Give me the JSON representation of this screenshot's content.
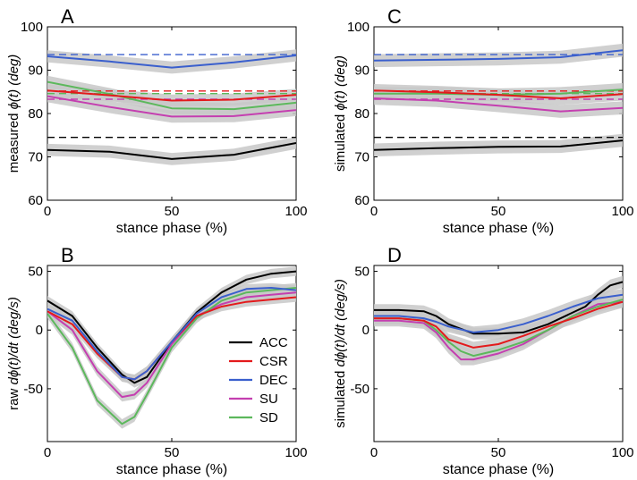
{
  "colors": {
    "ACC": "#000000",
    "CSR": "#e31a1c",
    "DEC": "#3a5fcd",
    "SU": "#c43fb0",
    "SD": "#5cb85c",
    "band": "#c8c8c8"
  },
  "legend": [
    "ACC",
    "CSR",
    "DEC",
    "SU",
    "SD"
  ],
  "chart_data": [
    {
      "panel": "A",
      "type": "line",
      "xlabel": "stance phase (%)",
      "ylabel_prefix": "measured ",
      "ylabel_sym": "ϕ(t)",
      "ylabel_unit": " (deg)",
      "xlim": [
        0,
        100
      ],
      "ylim": [
        60,
        100
      ],
      "xticks": [
        0,
        50,
        100
      ],
      "yticks": [
        60,
        70,
        80,
        90,
        100
      ],
      "band_width": 1.4,
      "series": [
        {
          "name": "DEC",
          "x": [
            0,
            25,
            50,
            75,
            100
          ],
          "y": [
            93.2,
            92.0,
            90.6,
            91.8,
            93.4
          ],
          "ref": 93.6
        },
        {
          "name": "CSR",
          "x": [
            0,
            25,
            50,
            75,
            100
          ],
          "y": [
            85.3,
            84.2,
            83.0,
            83.2,
            84.3
          ],
          "ref": 85.2
        },
        {
          "name": "SD",
          "x": [
            0,
            25,
            50,
            75,
            100
          ],
          "y": [
            87.3,
            84.5,
            81.2,
            81.0,
            82.5
          ],
          "ref": 84.6
        },
        {
          "name": "SU",
          "x": [
            0,
            25,
            50,
            75,
            100
          ],
          "y": [
            84.0,
            81.5,
            79.3,
            79.4,
            80.8
          ],
          "ref": 83.3
        },
        {
          "name": "ACC",
          "x": [
            0,
            25,
            50,
            75,
            100
          ],
          "y": [
            71.6,
            71.2,
            69.5,
            70.5,
            73.2
          ],
          "ref": 74.5
        }
      ]
    },
    {
      "panel": "B",
      "type": "line",
      "xlabel": "stance phase (%)",
      "ylabel_prefix": "raw ",
      "ylabel_sym": "dϕ(t)/dt",
      "ylabel_unit": " (deg/s)",
      "xlim": [
        0,
        100
      ],
      "ylim": [
        -95,
        55
      ],
      "xticks": [
        0,
        50,
        100
      ],
      "yticks": [
        -50,
        0,
        50
      ],
      "band_width": 4,
      "series": [
        {
          "name": "ACC",
          "x": [
            0,
            10,
            20,
            30,
            35,
            40,
            50,
            60,
            70,
            80,
            90,
            100
          ],
          "y": [
            25,
            12,
            -15,
            -38,
            -45,
            -40,
            -10,
            15,
            32,
            43,
            48,
            50
          ]
        },
        {
          "name": "CSR",
          "x": [
            0,
            10,
            20,
            30,
            35,
            40,
            50,
            60,
            70,
            80,
            90,
            100
          ],
          "y": [
            16,
            5,
            -20,
            -40,
            -42,
            -35,
            -10,
            12,
            20,
            24,
            26,
            28
          ]
        },
        {
          "name": "DEC",
          "x": [
            0,
            10,
            20,
            30,
            35,
            40,
            50,
            60,
            70,
            80,
            90,
            100
          ],
          "y": [
            18,
            8,
            -18,
            -40,
            -42,
            -35,
            -10,
            14,
            28,
            35,
            36,
            34
          ]
        },
        {
          "name": "SU",
          "x": [
            0,
            10,
            20,
            30,
            35,
            40,
            50,
            60,
            70,
            80,
            90,
            100
          ],
          "y": [
            16,
            0,
            -35,
            -57,
            -55,
            -45,
            -12,
            12,
            22,
            28,
            30,
            32
          ]
        },
        {
          "name": "SD",
          "x": [
            0,
            10,
            20,
            30,
            35,
            40,
            50,
            60,
            70,
            80,
            90,
            100
          ],
          "y": [
            14,
            -15,
            -60,
            -80,
            -74,
            -55,
            -15,
            10,
            25,
            32,
            34,
            36
          ]
        }
      ]
    },
    {
      "panel": "C",
      "type": "line",
      "xlabel": "stance phase (%)",
      "ylabel_prefix": "simulated ",
      "ylabel_sym": "ϕ(t)",
      "ylabel_unit": " (deg)",
      "xlim": [
        0,
        100
      ],
      "ylim": [
        60,
        100
      ],
      "xticks": [
        0,
        50,
        100
      ],
      "yticks": [
        60,
        70,
        80,
        90,
        100
      ],
      "band_width": 1.5,
      "series": [
        {
          "name": "DEC",
          "x": [
            0,
            25,
            50,
            75,
            100
          ],
          "y": [
            92.2,
            92.4,
            92.6,
            93.0,
            94.6
          ],
          "ref": 93.6
        },
        {
          "name": "CSR",
          "x": [
            0,
            25,
            50,
            75,
            100
          ],
          "y": [
            85.3,
            84.9,
            84.3,
            83.5,
            84.5
          ],
          "ref": 85.2
        },
        {
          "name": "SD",
          "x": [
            0,
            25,
            50,
            75,
            100
          ],
          "y": [
            84.6,
            84.6,
            84.3,
            84.6,
            85.5
          ],
          "ref": 84.6
        },
        {
          "name": "SU",
          "x": [
            0,
            25,
            50,
            75,
            100
          ],
          "y": [
            83.5,
            83.0,
            81.8,
            80.5,
            81.3
          ],
          "ref": 83.3
        },
        {
          "name": "ACC",
          "x": [
            0,
            25,
            50,
            75,
            100
          ],
          "y": [
            71.6,
            72.0,
            72.3,
            72.4,
            73.8
          ],
          "ref": 74.5
        }
      ]
    },
    {
      "panel": "D",
      "type": "line",
      "xlabel": "stance phase (%)",
      "ylabel_prefix": "simulated ",
      "ylabel_sym": "dϕ(t)/dt",
      "ylabel_unit": " (deg/s)",
      "xlim": [
        0,
        100
      ],
      "ylim": [
        -95,
        55
      ],
      "xticks": [
        0,
        50,
        100
      ],
      "yticks": [
        -50,
        0,
        50
      ],
      "band_width": 5,
      "series": [
        {
          "name": "ACC",
          "x": [
            0,
            10,
            20,
            25,
            30,
            40,
            50,
            60,
            70,
            80,
            85,
            90,
            95,
            100
          ],
          "y": [
            17,
            17,
            16,
            12,
            5,
            -3,
            -3,
            -2,
            5,
            15,
            20,
            30,
            38,
            41
          ]
        },
        {
          "name": "CSR",
          "x": [
            0,
            10,
            20,
            25,
            30,
            40,
            50,
            60,
            70,
            80,
            90,
            100
          ],
          "y": [
            10,
            10,
            8,
            3,
            -8,
            -15,
            -12,
            -5,
            3,
            10,
            18,
            24
          ]
        },
        {
          "name": "DEC",
          "x": [
            0,
            10,
            20,
            25,
            30,
            40,
            50,
            60,
            70,
            80,
            90,
            100
          ],
          "y": [
            12,
            12,
            10,
            7,
            3,
            -2,
            0,
            5,
            12,
            20,
            27,
            30
          ]
        },
        {
          "name": "SU",
          "x": [
            0,
            10,
            20,
            25,
            30,
            35,
            40,
            50,
            60,
            70,
            80,
            90,
            100
          ],
          "y": [
            8,
            8,
            6,
            -2,
            -15,
            -25,
            -25,
            -20,
            -12,
            0,
            12,
            22,
            24
          ]
        },
        {
          "name": "SD",
          "x": [
            0,
            10,
            20,
            25,
            30,
            35,
            40,
            50,
            60,
            70,
            80,
            90,
            100
          ],
          "y": [
            10,
            10,
            8,
            0,
            -10,
            -18,
            -22,
            -17,
            -10,
            0,
            12,
            20,
            26
          ]
        }
      ]
    }
  ]
}
